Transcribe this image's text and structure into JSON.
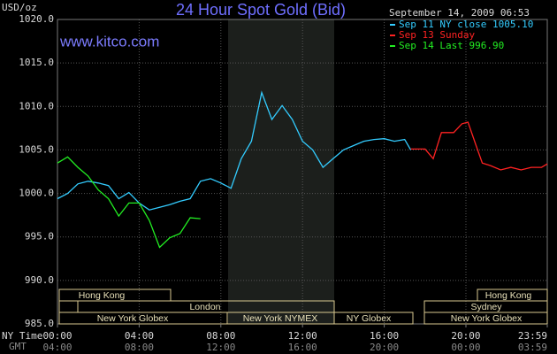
{
  "chart_data": {
    "type": "line",
    "title": "24 Hour Spot Gold (Bid)",
    "site": "www.kitco.com",
    "y_label": "USD/oz",
    "timestamp": "September 14, 2009 06:53",
    "x_label": "NY Time",
    "x2_label": "GMT",
    "xlim": [
      0,
      23.9833
    ],
    "xticks": [
      {
        "value": 0,
        "label": "00:00"
      },
      {
        "value": 4,
        "label": "04:00"
      },
      {
        "value": 8,
        "label": "08:00"
      },
      {
        "value": 12,
        "label": "12:00"
      },
      {
        "value": 16,
        "label": "16:00"
      },
      {
        "value": 20,
        "label": "20:00"
      },
      {
        "value": 23.9833,
        "label": "23:59"
      }
    ],
    "x2tick_labels": [
      "04:00",
      "08:00",
      "12:00",
      "16:00",
      "20:00",
      "00:00",
      "03:59"
    ],
    "ylim": [
      985,
      1020
    ],
    "yticks": [
      {
        "value": 985,
        "label": "985.0"
      },
      {
        "value": 990,
        "label": "990.0"
      },
      {
        "value": 995,
        "label": "995.0"
      },
      {
        "value": 1000,
        "label": "1000.0"
      },
      {
        "value": 1005,
        "label": "1005.0"
      },
      {
        "value": 1010,
        "label": "1010.0"
      },
      {
        "value": 1015,
        "label": "1015.0"
      },
      {
        "value": 1020,
        "label": "1020.0"
      }
    ],
    "grid": true,
    "series": [
      {
        "name": "Sep 11 NY close 1005.10",
        "color": "#33ccff",
        "x": [
          0,
          0.5,
          1,
          1.5,
          2,
          2.5,
          3,
          3.5,
          4,
          4.5,
          5,
          5.5,
          6,
          6.5,
          7,
          7.5,
          8,
          8.5,
          9,
          9.5,
          10,
          10.5,
          11,
          11.5,
          12,
          12.5,
          13,
          13.5,
          14,
          14.5,
          15,
          15.5,
          16,
          16.5,
          17,
          17.3
        ],
        "values": [
          999.4,
          1000,
          1001.1,
          1001.4,
          1001.2,
          1000.9,
          999.4,
          1000.1,
          998.9,
          998.1,
          998.4,
          998.7,
          999.1,
          999.4,
          1001.4,
          1001.7,
          1001.2,
          1000.6,
          1004,
          1006,
          1011.6,
          1008.5,
          1010.1,
          1008.5,
          1006,
          1005,
          1003,
          1004,
          1005,
          1005.5,
          1006,
          1006.2,
          1006.3,
          1006,
          1006.2,
          1005
        ]
      },
      {
        "name": "Sep 13 Sunday",
        "color": "#ff2222",
        "x": [
          17.3,
          18,
          18.4,
          18.8,
          19.4,
          19.8,
          20.1,
          20.5,
          20.8,
          21.2,
          21.7,
          22.2,
          22.7,
          23.2,
          23.7,
          23.9833
        ],
        "values": [
          1005.1,
          1005.1,
          1004,
          1007,
          1007,
          1008,
          1008.2,
          1005.5,
          1003.5,
          1003.2,
          1002.7,
          1003,
          1002.7,
          1003,
          1003,
          1003.4
        ]
      },
      {
        "name": "Sep 14 Last 996.90",
        "color": "#22ee22",
        "x": [
          0,
          0.5,
          1,
          1.5,
          2,
          2.5,
          3,
          3.5,
          4,
          4.5,
          5,
          5.5,
          6,
          6.5,
          7
        ],
        "values": [
          1003.5,
          1004.2,
          1003,
          1002,
          1000.4,
          999.4,
          997.4,
          998.9,
          998.9,
          996.9,
          993.8,
          994.9,
          995.4,
          997.2,
          997.1
        ]
      }
    ],
    "sessions": {
      "hong_kong": "Hong Kong",
      "london": "London",
      "ny_globex": "New York Globex",
      "ny_nymex": "New York NYMEX",
      "ny_globex_short": "NY Globex",
      "hong_kong_2": "Hong Kong",
      "sydney": "Sydney",
      "ny_globex_2": "New York Globex"
    }
  }
}
